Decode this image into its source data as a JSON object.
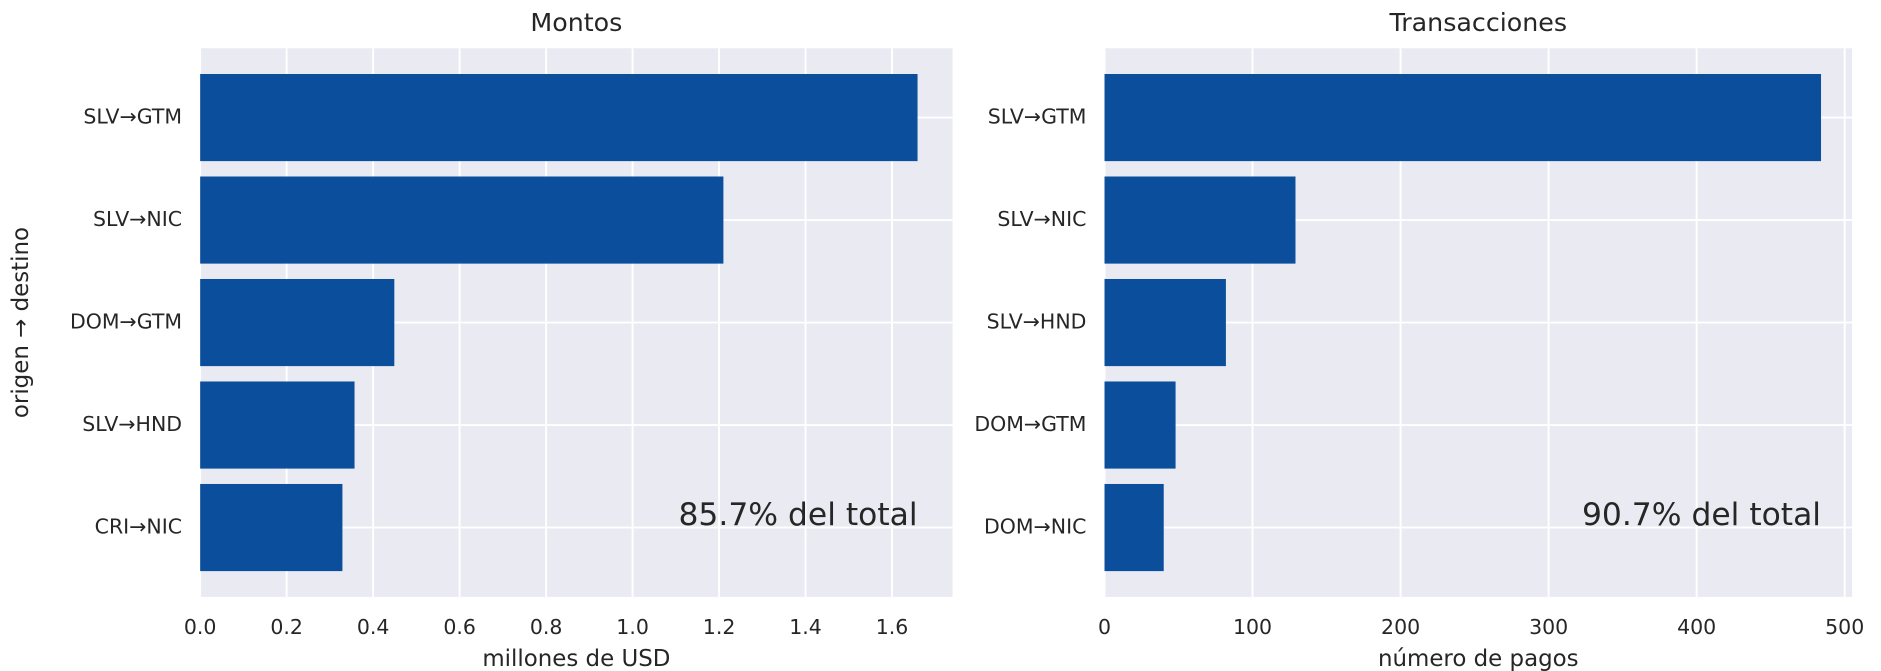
{
  "chart_data": [
    {
      "type": "barh",
      "title": "Montos",
      "xlabel": "millones de USD",
      "ylabel": "origen → destino",
      "categories": [
        "SLV→GTM",
        "SLV→NIC",
        "DOM→GTM",
        "SLV→HND",
        "CRI→NIC"
      ],
      "values": [
        1.659,
        1.21,
        0.449,
        0.357,
        0.329
      ],
      "color": "#0b4f9c",
      "xlim": [
        0,
        1.74
      ],
      "xticks": [
        {
          "value": 0,
          "label": "0.0"
        },
        0.2,
        0.4,
        0.6,
        0.8,
        {
          "value": 1,
          "label": "1.0"
        },
        1.2,
        1.4,
        1.6
      ],
      "annotation": "85.7% del total",
      "grid": true
    },
    {
      "type": "barh",
      "title": "Transacciones",
      "xlabel": "número de pagos",
      "categories": [
        "SLV→GTM",
        "SLV→NIC",
        "SLV→HND",
        "DOM→GTM",
        "DOM→NIC"
      ],
      "values": [
        484,
        129,
        82,
        48,
        40
      ],
      "color": "#0b4f9c",
      "xlim": [
        0,
        505
      ],
      "xticks": [
        0,
        100,
        200,
        300,
        400,
        500
      ],
      "annotation": "90.7% del total",
      "grid": true
    }
  ]
}
